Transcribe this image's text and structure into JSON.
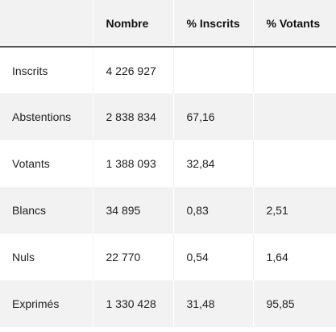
{
  "table": {
    "headers": [
      "",
      "Nombre",
      "% Inscrits",
      "% Votants"
    ],
    "rows": [
      {
        "label": "Inscrits",
        "nombre": "4 226 927",
        "pct_inscrits": "",
        "pct_votants": ""
      },
      {
        "label": "Abstentions",
        "nombre": "2 838 834",
        "pct_inscrits": "67,16",
        "pct_votants": ""
      },
      {
        "label": "Votants",
        "nombre": "1 388 093",
        "pct_inscrits": "32,84",
        "pct_votants": ""
      },
      {
        "label": "Blancs",
        "nombre": "34 895",
        "pct_inscrits": "0,83",
        "pct_votants": "2,51"
      },
      {
        "label": "Nuls",
        "nombre": "22 770",
        "pct_inscrits": "0,54",
        "pct_votants": "1,64"
      },
      {
        "label": "Exprimés",
        "nombre": "1 330 428",
        "pct_inscrits": "31,48",
        "pct_votants": "95,85"
      }
    ]
  },
  "colors": {
    "header_bg": "#f2f2f2",
    "stripe_bg": "#f2f2f2",
    "header_rule": "#555555",
    "text": "#222222"
  }
}
